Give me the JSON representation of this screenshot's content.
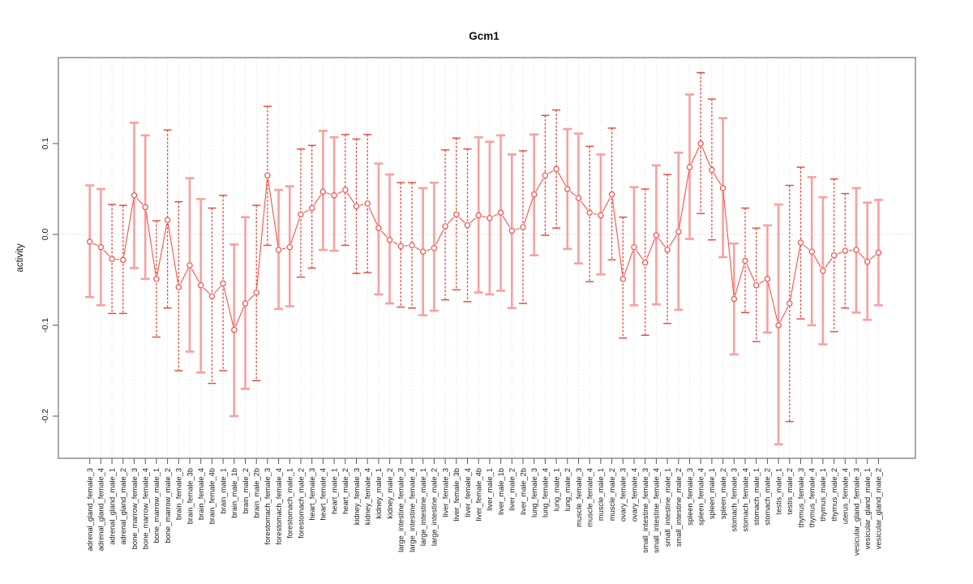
{
  "chart_data": {
    "type": "scatter",
    "title": "Gcm1",
    "ylabel": "activity",
    "xlabel": "",
    "ylim": [
      -0.246,
      0.195
    ],
    "yticks": [
      {
        "label": "0.1",
        "value": 0.1
      },
      {
        "label": "0.0",
        "value": 0.0
      },
      {
        "label": "-0.1",
        "value": -0.1
      },
      {
        "label": "-0.2",
        "value": -0.2
      }
    ],
    "grid": "vertical dotted line per sample, dotted horizontal zero line, legend none",
    "marker": "open circle connected by line, vertical error bars with caps",
    "colors": {
      "salmon_bar": "#f9a09e",
      "red_bar": "#ee4136",
      "series_line": "#ff4f46",
      "point_stroke": "#f64c42",
      "grid": "#dcdcdc",
      "zero_line": "#c9c9c9",
      "box": "#7d7d7d",
      "tick": "#555555",
      "label": "#1a1a1a"
    },
    "samples": [
      {
        "label": "adrenal_gland_female_3",
        "value": -0.008,
        "lo": -0.069,
        "hi": 0.054,
        "bar": "salmon"
      },
      {
        "label": "adrenal_gland_female_4",
        "value": -0.014,
        "lo": -0.078,
        "hi": 0.05,
        "bar": "salmon"
      },
      {
        "label": "adrenal_gland_male_1",
        "value": -0.027,
        "lo": -0.087,
        "hi": 0.033,
        "bar": "red-dashed"
      },
      {
        "label": "adrenal_gland_male_2",
        "value": -0.028,
        "lo": -0.087,
        "hi": 0.032,
        "bar": "red-dashed"
      },
      {
        "label": "bone_marrow_female_3",
        "value": 0.043,
        "lo": -0.037,
        "hi": 0.123,
        "bar": "salmon"
      },
      {
        "label": "bone_marrow_female_4",
        "value": 0.03,
        "lo": -0.049,
        "hi": 0.109,
        "bar": "salmon"
      },
      {
        "label": "bone_marrow_male_1",
        "value": -0.049,
        "lo": -0.113,
        "hi": 0.015,
        "bar": "red-dashed"
      },
      {
        "label": "bone_marrow_male_2",
        "value": 0.016,
        "lo": -0.081,
        "hi": 0.115,
        "bar": "red-dashed"
      },
      {
        "label": "brain_female_3",
        "value": -0.058,
        "lo": -0.15,
        "hi": 0.036,
        "bar": "red-dashed"
      },
      {
        "label": "brain_female_3b",
        "value": -0.034,
        "lo": -0.129,
        "hi": 0.062,
        "bar": "salmon"
      },
      {
        "label": "brain_female_4",
        "value": -0.056,
        "lo": -0.152,
        "hi": 0.039,
        "bar": "salmon"
      },
      {
        "label": "brain_female_4b",
        "value": -0.068,
        "lo": -0.164,
        "hi": 0.029,
        "bar": "red-dashed"
      },
      {
        "label": "brain_male_1",
        "value": -0.054,
        "lo": -0.15,
        "hi": 0.043,
        "bar": "red-dashed"
      },
      {
        "label": "brain_male_1b",
        "value": -0.105,
        "lo": -0.2,
        "hi": -0.011,
        "bar": "salmon"
      },
      {
        "label": "brain_male_2",
        "value": -0.076,
        "lo": -0.17,
        "hi": 0.019,
        "bar": "salmon"
      },
      {
        "label": "brain_male_2b",
        "value": -0.064,
        "lo": -0.161,
        "hi": 0.032,
        "bar": "red-dashed"
      },
      {
        "label": "forestomach_female_3",
        "value": 0.065,
        "lo": -0.012,
        "hi": 0.141,
        "bar": "red-dashed"
      },
      {
        "label": "forestomach_female_4",
        "value": -0.017,
        "lo": -0.082,
        "hi": 0.049,
        "bar": "salmon"
      },
      {
        "label": "forestomach_male_1",
        "value": -0.014,
        "lo": -0.079,
        "hi": 0.053,
        "bar": "salmon"
      },
      {
        "label": "forestomach_male_2",
        "value": 0.022,
        "lo": -0.047,
        "hi": 0.094,
        "bar": "red-dashed"
      },
      {
        "label": "heart_female_3",
        "value": 0.029,
        "lo": -0.037,
        "hi": 0.098,
        "bar": "red-dashed"
      },
      {
        "label": "heart_female_4",
        "value": 0.047,
        "lo": -0.017,
        "hi": 0.114,
        "bar": "salmon"
      },
      {
        "label": "heart_male_1",
        "value": 0.043,
        "lo": -0.018,
        "hi": 0.107,
        "bar": "salmon"
      },
      {
        "label": "heart_male_2",
        "value": 0.049,
        "lo": -0.012,
        "hi": 0.11,
        "bar": "red-dashed"
      },
      {
        "label": "kidney_female_3",
        "value": 0.031,
        "lo": -0.043,
        "hi": 0.105,
        "bar": "red-dashed"
      },
      {
        "label": "kidney_female_4",
        "value": 0.034,
        "lo": -0.042,
        "hi": 0.11,
        "bar": "red-dashed"
      },
      {
        "label": "kidney_male_1",
        "value": 0.007,
        "lo": -0.066,
        "hi": 0.078,
        "bar": "salmon"
      },
      {
        "label": "kidney_male_2",
        "value": -0.006,
        "lo": -0.076,
        "hi": 0.066,
        "bar": "salmon"
      },
      {
        "label": "large_intestine_female_3",
        "value": -0.013,
        "lo": -0.08,
        "hi": 0.057,
        "bar": "red-dashed"
      },
      {
        "label": "large_intestine_female_4",
        "value": -0.012,
        "lo": -0.081,
        "hi": 0.057,
        "bar": "red-dashed"
      },
      {
        "label": "large_intestine_male_1",
        "value": -0.019,
        "lo": -0.089,
        "hi": 0.051,
        "bar": "salmon"
      },
      {
        "label": "large_intestine_male_2",
        "value": -0.015,
        "lo": -0.084,
        "hi": 0.057,
        "bar": "salmon"
      },
      {
        "label": "liver_female_3",
        "value": 0.009,
        "lo": -0.072,
        "hi": 0.093,
        "bar": "red-dashed"
      },
      {
        "label": "liver_female_3b",
        "value": 0.022,
        "lo": -0.061,
        "hi": 0.106,
        "bar": "red-dashed"
      },
      {
        "label": "liver_female_4",
        "value": 0.01,
        "lo": -0.074,
        "hi": 0.094,
        "bar": "red-dashed"
      },
      {
        "label": "liver_female_4b",
        "value": 0.021,
        "lo": -0.064,
        "hi": 0.107,
        "bar": "salmon"
      },
      {
        "label": "liver_male_1",
        "value": 0.018,
        "lo": -0.066,
        "hi": 0.102,
        "bar": "salmon"
      },
      {
        "label": "liver_male_1b",
        "value": 0.024,
        "lo": -0.062,
        "hi": 0.109,
        "bar": "salmon"
      },
      {
        "label": "liver_male_2",
        "value": 0.004,
        "lo": -0.081,
        "hi": 0.088,
        "bar": "salmon"
      },
      {
        "label": "liver_male_2b",
        "value": 0.008,
        "lo": -0.076,
        "hi": 0.092,
        "bar": "red-dashed"
      },
      {
        "label": "lung_female_3",
        "value": 0.044,
        "lo": -0.023,
        "hi": 0.11,
        "bar": "salmon"
      },
      {
        "label": "lung_female_4",
        "value": 0.065,
        "lo": -0.001,
        "hi": 0.131,
        "bar": "red-dashed"
      },
      {
        "label": "lung_male_1",
        "value": 0.072,
        "lo": 0.007,
        "hi": 0.137,
        "bar": "red-dashed"
      },
      {
        "label": "lung_male_2",
        "value": 0.05,
        "lo": -0.016,
        "hi": 0.116,
        "bar": "salmon"
      },
      {
        "label": "muscle_female_3",
        "value": 0.04,
        "lo": -0.032,
        "hi": 0.111,
        "bar": "salmon"
      },
      {
        "label": "muscle_female_4",
        "value": 0.024,
        "lo": -0.052,
        "hi": 0.097,
        "bar": "red-dashed"
      },
      {
        "label": "muscle_male_1",
        "value": 0.021,
        "lo": -0.044,
        "hi": 0.088,
        "bar": "salmon"
      },
      {
        "label": "muscle_male_2",
        "value": 0.044,
        "lo": -0.028,
        "hi": 0.117,
        "bar": "red-dashed"
      },
      {
        "label": "ovary_female_3",
        "value": -0.049,
        "lo": -0.114,
        "hi": 0.019,
        "bar": "red-dashed"
      },
      {
        "label": "ovary_female_4",
        "value": -0.014,
        "lo": -0.078,
        "hi": 0.052,
        "bar": "salmon"
      },
      {
        "label": "small_intestine_female_3",
        "value": -0.031,
        "lo": -0.111,
        "hi": 0.05,
        "bar": "red-dashed"
      },
      {
        "label": "small_intestine_female_4",
        "value": -0.001,
        "lo": -0.077,
        "hi": 0.076,
        "bar": "salmon"
      },
      {
        "label": "small_intestine_male_1",
        "value": -0.017,
        "lo": -0.098,
        "hi": 0.066,
        "bar": "red-dashed"
      },
      {
        "label": "small_intestine_male_2",
        "value": 0.003,
        "lo": -0.083,
        "hi": 0.09,
        "bar": "salmon"
      },
      {
        "label": "spleen_female_3",
        "value": 0.074,
        "lo": -0.005,
        "hi": 0.154,
        "bar": "salmon"
      },
      {
        "label": "spleen_female_4",
        "value": 0.1,
        "lo": 0.023,
        "hi": 0.178,
        "bar": "red-dashed"
      },
      {
        "label": "spleen_male_1",
        "value": 0.071,
        "lo": -0.006,
        "hi": 0.149,
        "bar": "red-dashed"
      },
      {
        "label": "spleen_male_2",
        "value": 0.051,
        "lo": -0.025,
        "hi": 0.128,
        "bar": "salmon"
      },
      {
        "label": "stomach_female_3",
        "value": -0.071,
        "lo": -0.132,
        "hi": -0.01,
        "bar": "salmon"
      },
      {
        "label": "stomach_female_4",
        "value": -0.029,
        "lo": -0.086,
        "hi": 0.029,
        "bar": "red-dashed"
      },
      {
        "label": "stomach_male_1",
        "value": -0.056,
        "lo": -0.118,
        "hi": 0.007,
        "bar": "red-dashed"
      },
      {
        "label": "stomach_male_2",
        "value": -0.049,
        "lo": -0.108,
        "hi": 0.01,
        "bar": "salmon"
      },
      {
        "label": "testis_male_1",
        "value": -0.1,
        "lo": -0.231,
        "hi": 0.033,
        "bar": "salmon"
      },
      {
        "label": "testis_male_2",
        "value": -0.076,
        "lo": -0.206,
        "hi": 0.054,
        "bar": "red-dashed"
      },
      {
        "label": "thymus_female_3",
        "value": -0.009,
        "lo": -0.093,
        "hi": 0.074,
        "bar": "red-dashed"
      },
      {
        "label": "thymus_female_4",
        "value": -0.019,
        "lo": -0.1,
        "hi": 0.063,
        "bar": "salmon"
      },
      {
        "label": "thymus_male_1",
        "value": -0.04,
        "lo": -0.121,
        "hi": 0.041,
        "bar": "salmon"
      },
      {
        "label": "thymus_male_2",
        "value": -0.023,
        "lo": -0.107,
        "hi": 0.061,
        "bar": "red-dashed"
      },
      {
        "label": "uterus_female_4",
        "value": -0.018,
        "lo": -0.081,
        "hi": 0.045,
        "bar": "red-dashed"
      },
      {
        "label": "vesicular_gland_female_3",
        "value": -0.017,
        "lo": -0.086,
        "hi": 0.051,
        "bar": "salmon"
      },
      {
        "label": "vesicular_gland_male_1",
        "value": -0.03,
        "lo": -0.094,
        "hi": 0.035,
        "bar": "salmon"
      },
      {
        "label": "vesicular_gland_male_2",
        "value": -0.02,
        "lo": -0.078,
        "hi": 0.038,
        "bar": "salmon"
      }
    ]
  }
}
